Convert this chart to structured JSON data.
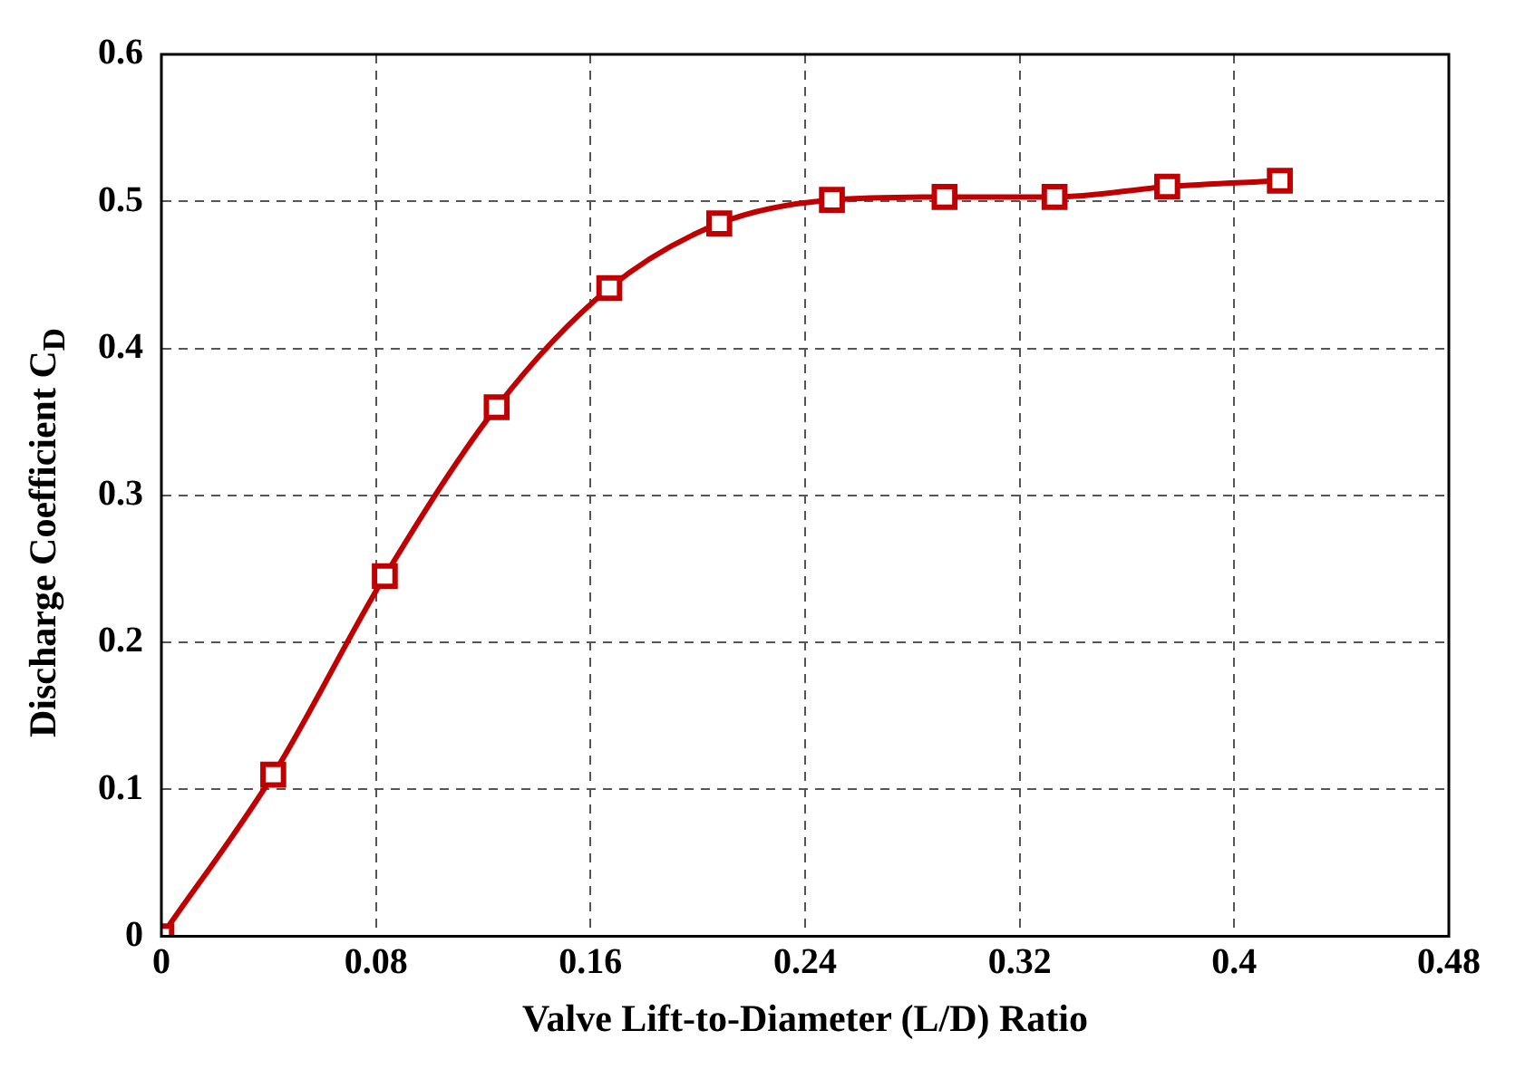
{
  "chart_data": {
    "type": "line",
    "xlabel": "Valve Lift-to-Diameter (L/D) Ratio",
    "ylabel": "Discharge Coefficient C$_{D}$",
    "x": [
      0,
      0.0417,
      0.0833,
      0.125,
      0.167,
      0.208,
      0.25,
      0.292,
      0.333,
      0.375,
      0.417
    ],
    "series": [
      {
        "color": "#c00000",
        "values": [
          0,
          0.11,
          0.245,
          0.36,
          0.441,
          0.485,
          0.501,
          0.503,
          0.503,
          0.51,
          0.514
        ]
      }
    ],
    "xlim": [
      0,
      0.48
    ],
    "xticks": [
      0,
      0.08,
      0.16,
      0.24,
      0.32,
      0.4,
      0.48
    ],
    "ylim": [
      0,
      0.6
    ],
    "yticks": [
      0,
      0.1,
      0.2,
      0.3,
      0.4,
      0.5,
      0.6
    ],
    "grid": true,
    "marker": "square",
    "line_style": "solid"
  }
}
